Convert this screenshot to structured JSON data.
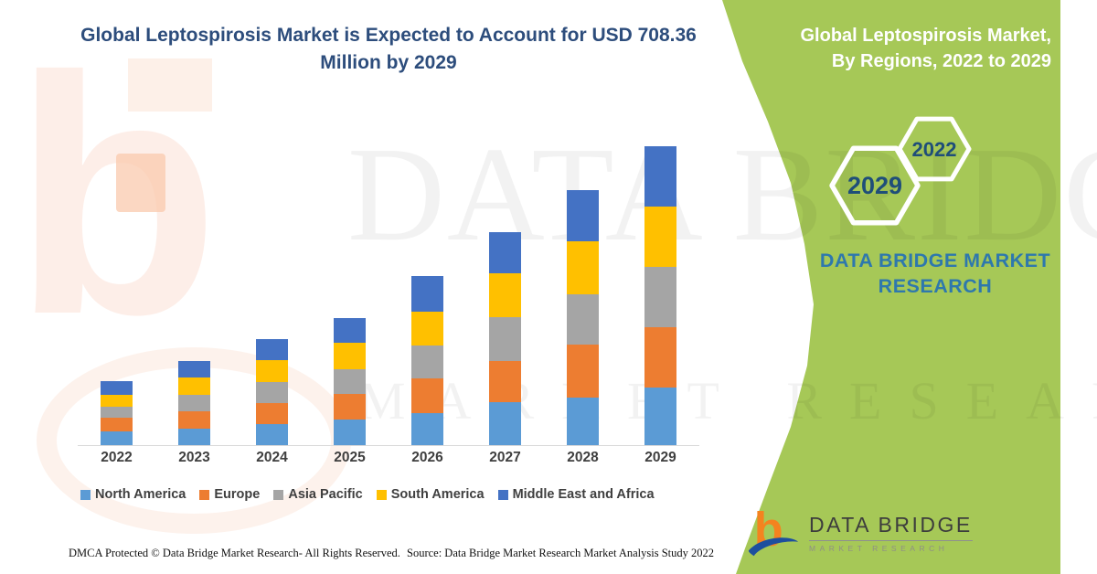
{
  "title": {
    "text": "Global Leptospirosis Market is Expected to Account for USD 708.36 Million by 2029",
    "color": "#2d4d7c"
  },
  "side_panel": {
    "bg_color": "#a6c857",
    "heading": "Global Leptospirosis Market, By Regions, 2022 to 2029",
    "heading_color": "#ffffff",
    "hex_large_label": "2029",
    "hex_small_label": "2022",
    "hex_label_color": "#1f4e79",
    "brand_text": "DATA BRIDGE MARKET RESEARCH",
    "brand_text_color": "#2e78ad"
  },
  "chart_data": {
    "type": "bar",
    "stacked": true,
    "unit": "USD Million",
    "title": "Global Leptospirosis Market is Expected to Account for USD 708.36 Million by 2029",
    "note": "No y-axis shown; values estimated from bar heights with 2029 total anchored at 708.36",
    "categories": [
      "2022",
      "2023",
      "2024",
      "2025",
      "2026",
      "2027",
      "2028",
      "2029"
    ],
    "series": [
      {
        "name": "North America",
        "color": "#5B9BD5",
        "values": [
          34.7,
          41.2,
          51.2,
          62.8,
          78.0,
          104.0,
          114.8,
          138.56
        ]
      },
      {
        "name": "Europe",
        "color": "#ED7D31",
        "values": [
          32.5,
          40.3,
          50.9,
          60.7,
          82.3,
          97.5,
          125.6,
          143.0
        ]
      },
      {
        "name": "Asia Pacific",
        "color": "#A5A5A5",
        "values": [
          26.0,
          39.8,
          50.2,
          58.5,
          78.0,
          104.0,
          119.1,
          140.8
        ]
      },
      {
        "name": "South America",
        "color": "#FFC000",
        "values": [
          28.2,
          40.1,
          50.6,
          62.8,
          80.1,
          101.8,
          123.5,
          143.0
        ]
      },
      {
        "name": "Middle East and Africa",
        "color": "#4472C4",
        "values": [
          32.5,
          40.1,
          50.5,
          58.5,
          84.5,
          97.5,
          121.3,
          143.0
        ]
      }
    ],
    "totals": [
      153.9,
      201.5,
      253.4,
      303.3,
      402.9,
      504.8,
      604.3,
      708.36
    ],
    "highlight_value": "708.36",
    "legend_position": "bottom",
    "axis": {
      "y_visible": false,
      "x_visible": true,
      "x_line_color": "#d9d9d9"
    }
  },
  "watermark": {
    "line1": "DATA BRIDGE",
    "line2": "MARKET RESEARCH",
    "letter": "b"
  },
  "footer": {
    "dmca": "DMCA Protected © Data Bridge Market Research- All Rights Reserved.",
    "source": "Source: Data Bridge Market Research Market Analysis Study 2022"
  },
  "logo": {
    "name": "DATA BRIDGE",
    "tagline": "MARKET RESEARCH"
  }
}
